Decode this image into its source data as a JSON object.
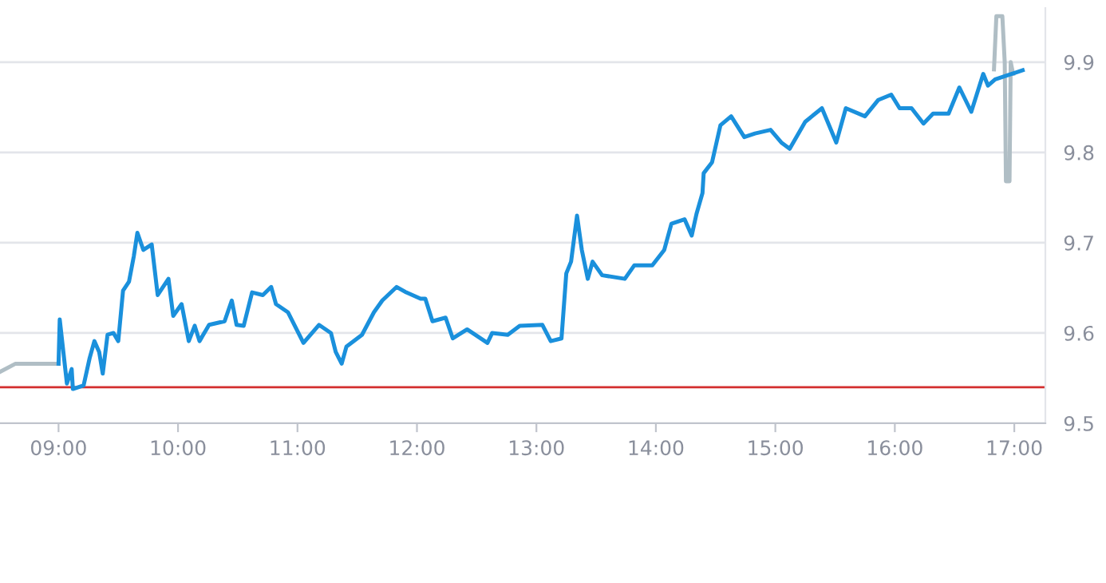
{
  "chart_data": {
    "type": "line",
    "xlim": [
      8.51,
      17.26
    ],
    "ylim": [
      9.5,
      9.96
    ],
    "xticks": [
      {
        "value": 9,
        "label": "09:00"
      },
      {
        "value": 10,
        "label": "10:00"
      },
      {
        "value": 11,
        "label": "11:00"
      },
      {
        "value": 12,
        "label": "12:00"
      },
      {
        "value": 13,
        "label": "13:00"
      },
      {
        "value": 14,
        "label": "14:00"
      },
      {
        "value": 15,
        "label": "15:00"
      },
      {
        "value": 16,
        "label": "16:00"
      },
      {
        "value": 17,
        "label": "17:00"
      }
    ],
    "yticks": [
      9.5,
      9.6,
      9.7,
      9.8,
      9.9
    ],
    "grid": "y",
    "marker": "none",
    "line_style": "solid",
    "ref_lines": [
      {
        "axis": "y",
        "value": 9.54,
        "label": null,
        "color": "#d32f2f"
      }
    ],
    "series": [
      {
        "color": "#b0bec5",
        "x": [
          8.51,
          8.64,
          9.0
        ],
        "values": [
          9.557,
          9.566,
          9.566
        ]
      },
      {
        "color": "#b0bec5",
        "x": [
          16.83,
          16.85,
          16.9,
          16.92,
          16.93,
          16.96,
          16.97,
          16.99
        ],
        "values": [
          9.892,
          9.951,
          9.951,
          9.9,
          9.768,
          9.768,
          9.9,
          9.887
        ]
      },
      {
        "color": "#1a90dc",
        "x": [
          9.0,
          9.01,
          9.07,
          9.11,
          9.12,
          9.21,
          9.26,
          9.3,
          9.34,
          9.37,
          9.41,
          9.46,
          9.5,
          9.54,
          9.59,
          9.63,
          9.66,
          9.71,
          9.78,
          9.83,
          9.92,
          9.96,
          10.03,
          10.09,
          10.14,
          10.18,
          10.26,
          10.39,
          10.45,
          10.49,
          10.55,
          10.62,
          10.71,
          10.78,
          10.82,
          10.92,
          11.05,
          11.18,
          11.28,
          11.32,
          11.37,
          11.41,
          11.54,
          11.64,
          11.71,
          11.83,
          11.91,
          12.03,
          12.07,
          12.13,
          12.24,
          12.3,
          12.42,
          12.59,
          12.63,
          12.76,
          12.86,
          13.05,
          13.12,
          13.21,
          13.25,
          13.29,
          13.34,
          13.38,
          13.43,
          13.47,
          13.55,
          13.74,
          13.82,
          13.97,
          14.07,
          14.13,
          14.24,
          14.3,
          14.34,
          14.39,
          14.4,
          14.47,
          14.54,
          14.63,
          14.74,
          14.83,
          14.96,
          15.05,
          15.12,
          15.25,
          15.39,
          15.51,
          15.59,
          15.75,
          15.86,
          15.97,
          16.04,
          16.14,
          16.24,
          16.32,
          16.45,
          16.54,
          16.64,
          16.74,
          16.78,
          16.84,
          17.07
        ],
        "values": [
          9.566,
          9.615,
          9.544,
          9.56,
          9.538,
          9.542,
          9.572,
          9.591,
          9.579,
          9.555,
          9.598,
          9.6,
          9.591,
          9.647,
          9.657,
          9.685,
          9.711,
          9.692,
          9.698,
          9.642,
          9.66,
          9.619,
          9.632,
          9.591,
          9.608,
          9.591,
          9.609,
          9.613,
          9.636,
          9.609,
          9.608,
          9.645,
          9.642,
          9.651,
          9.632,
          9.623,
          9.589,
          9.609,
          9.6,
          9.579,
          9.566,
          9.585,
          9.598,
          9.623,
          9.636,
          9.651,
          9.645,
          9.638,
          9.638,
          9.613,
          9.617,
          9.594,
          9.604,
          9.589,
          9.6,
          9.598,
          9.608,
          9.609,
          9.591,
          9.594,
          9.666,
          9.679,
          9.73,
          9.692,
          9.66,
          9.679,
          9.664,
          9.66,
          9.675,
          9.675,
          9.692,
          9.721,
          9.726,
          9.708,
          9.732,
          9.755,
          9.777,
          9.789,
          9.83,
          9.84,
          9.817,
          9.821,
          9.825,
          9.811,
          9.804,
          9.834,
          9.849,
          9.811,
          9.849,
          9.84,
          9.858,
          9.864,
          9.849,
          9.849,
          9.832,
          9.843,
          9.843,
          9.872,
          9.845,
          9.887,
          9.874,
          9.881,
          9.891
        ]
      }
    ]
  }
}
